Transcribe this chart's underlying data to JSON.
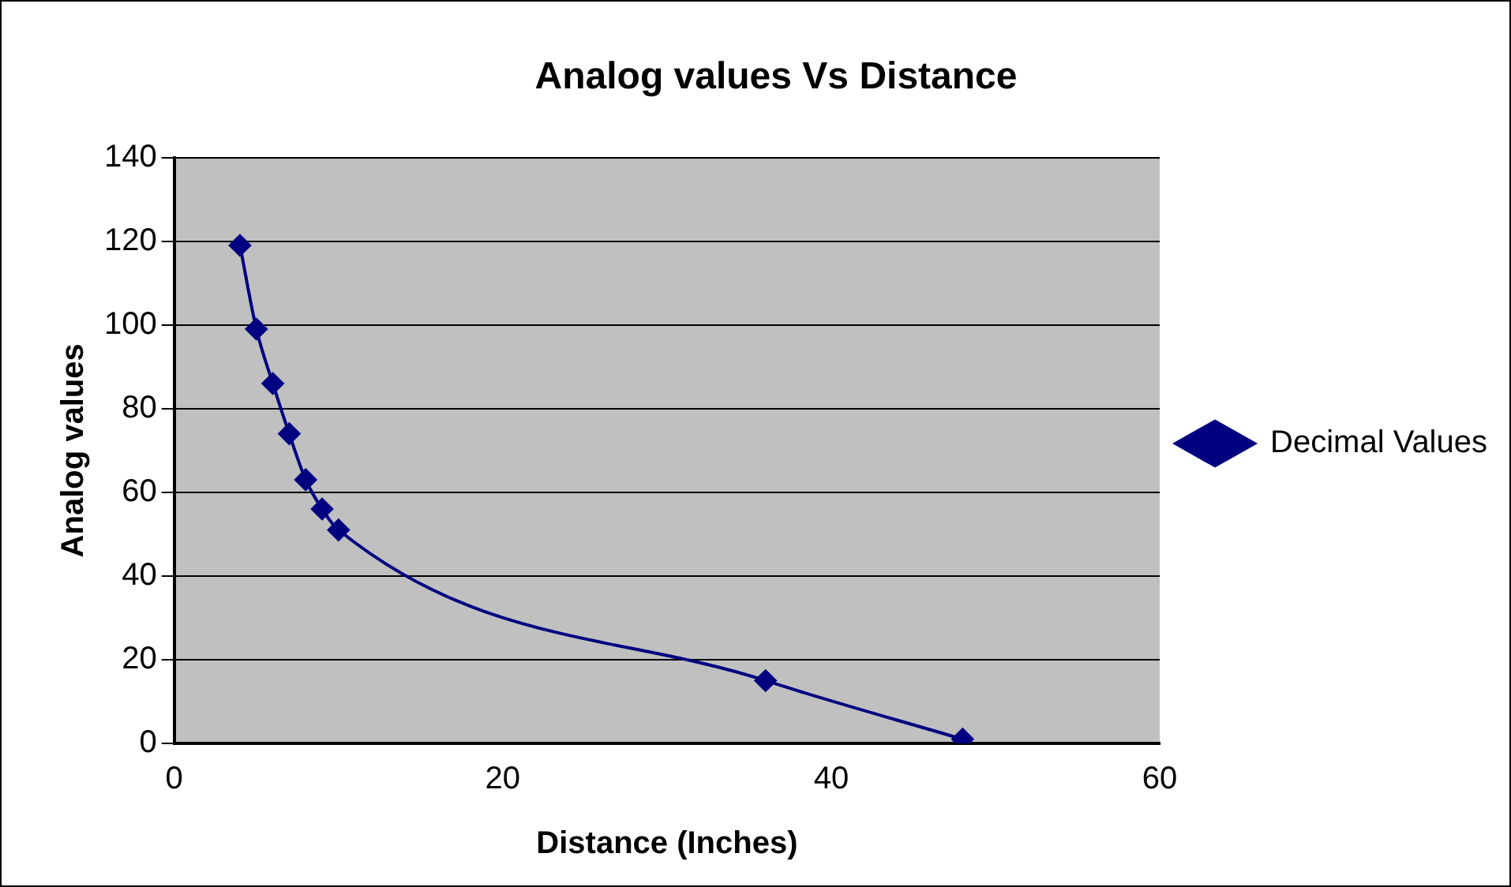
{
  "chart_data": {
    "type": "line",
    "title": "Analog values Vs Distance",
    "xlabel": "Distance (Inches)",
    "ylabel": "Analog values",
    "x": [
      4,
      5,
      6,
      7,
      8,
      9,
      10,
      36,
      48
    ],
    "series": [
      {
        "name": "Decimal Values",
        "color": "#000080",
        "values": [
          119,
          99,
          86,
          74,
          63,
          56,
          51,
          15,
          1
        ]
      }
    ],
    "xlim": [
      0,
      60
    ],
    "xticks": [
      0,
      20,
      40,
      60
    ],
    "ylim": [
      0,
      140
    ],
    "yticks": [
      0,
      20,
      40,
      60,
      80,
      100,
      120,
      140
    ],
    "grid": "y",
    "legend": "right",
    "marker": "diamond",
    "line_style": "solid"
  }
}
